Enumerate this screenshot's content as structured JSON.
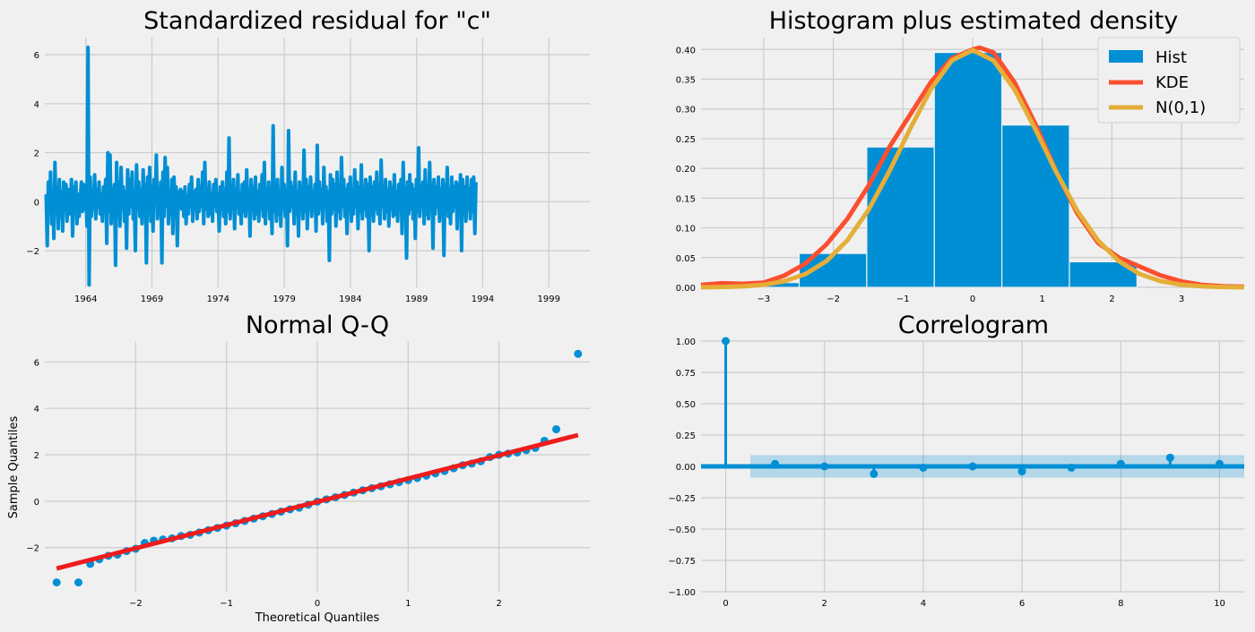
{
  "chart_data": [
    {
      "id": "resid",
      "type": "line",
      "title": "Standardized residual for \"c\"",
      "xlabel": "",
      "ylabel": "",
      "xlim": [
        1960.9,
        2002.1
      ],
      "ylim": [
        -3.5,
        6.7
      ],
      "xticks": [
        1964,
        1969,
        1974,
        1979,
        1984,
        1989,
        1994,
        1999
      ],
      "xtick_labels": [
        "1964",
        "1969",
        "1974",
        "1979",
        "1984",
        "1989",
        "1994",
        "1999"
      ],
      "yticks": [
        -2,
        0,
        2,
        4,
        6
      ],
      "ytick_labels": [
        "−2",
        "0",
        "2",
        "4",
        "6"
      ],
      "grid": true,
      "series": [
        {
          "color": "#008fd5",
          "x_start": 1961.0,
          "x_step": 0.0833,
          "values": [
            0.3,
            -1.8,
            0.8,
            -0.4,
            1.2,
            -0.9,
            0.2,
            -1.5,
            1.6,
            -0.3,
            0.6,
            -1.1,
            0.9,
            -0.6,
            0.4,
            -1.2,
            0.8,
            -0.2,
            0.7,
            -0.8,
            0.5,
            0.2,
            -0.5,
            0.9,
            -1.4,
            0.6,
            -0.2,
            0.8,
            -0.9,
            0.3,
            -0.6,
            0.2,
            0.8,
            -0.4,
            0.7,
            -0.3,
            0.5,
            -1.0,
            6.3,
            -3.4,
            1.0,
            -0.6,
            0.4,
            -0.3,
            1.1,
            -0.7,
            0.5,
            -0.2,
            0.8,
            -0.5,
            0.3,
            -0.8,
            0.6,
            -0.1,
            0.9,
            -1.7,
            2.0,
            -0.4,
            1.9,
            -0.9,
            0.5,
            -0.2,
            0.7,
            -2.6,
            1.6,
            -0.5,
            0.8,
            -1.0,
            1.4,
            -0.3,
            0.6,
            -0.8,
            0.4,
            -1.9,
            1.3,
            -0.5,
            0.9,
            -0.2,
            1.2,
            -0.7,
            0.3,
            -2.0,
            1.5,
            -0.3,
            0.8,
            -0.6,
            0.5,
            -0.9,
            1.3,
            -0.4,
            0.7,
            -2.5,
            1.0,
            -0.3,
            1.4,
            -0.8,
            0.6,
            -1.2,
            0.9,
            -0.1,
            1.9,
            -0.7,
            0.5,
            -0.3,
            0.8,
            -2.5,
            1.2,
            -0.6,
            1.8,
            -0.2,
            1.4,
            -0.9,
            0.3,
            -0.5,
            0.9,
            -1.3,
            1.0,
            -0.4,
            0.6,
            -1.8,
            0.4,
            -0.1,
            0.5,
            -0.3,
            0.4,
            -0.6,
            0.6,
            -0.9,
            0.2,
            -0.5,
            0.7,
            -0.2,
            1.0,
            -0.8,
            0.4,
            -0.3,
            0.5,
            -0.7,
            0.9,
            -0.4,
            0.6,
            -0.2,
            1.2,
            -0.9,
            1.6,
            -0.3,
            0.4,
            -0.6,
            0.8,
            -0.5,
            0.3,
            -0.8,
            0.7,
            -0.2,
            0.9,
            -0.4,
            0.3,
            -1.2,
            0.6,
            -0.3,
            0.8,
            -0.6,
            0.5,
            -0.9,
            1.2,
            -0.4,
            2.6,
            -0.7,
            0.6,
            -0.3,
            0.9,
            -1.1,
            0.5,
            -0.2,
            1.1,
            -0.5,
            0.3,
            -0.9,
            0.7,
            -0.4,
            0.8,
            -0.6,
            1.3,
            -0.3,
            0.5,
            -1.4,
            0.9,
            -0.2,
            0.6,
            -0.7,
            1.0,
            -0.5,
            0.4,
            -0.8,
            0.7,
            -0.3,
            1.1,
            -0.6,
            1.6,
            -0.9,
            0.4,
            -0.2,
            0.8,
            -0.7,
            0.5,
            -1.3,
            3.1,
            -0.4,
            0.6,
            -0.8,
            0.9,
            -0.5,
            0.3,
            -1.0,
            1.4,
            -0.3,
            0.7,
            -0.6,
            0.5,
            -1.8,
            2.9,
            -0.4,
            0.8,
            -0.2,
            0.6,
            -0.9,
            1.2,
            -0.5,
            0.4,
            -1.4,
            0.8,
            -0.3,
            0.5,
            -0.7,
            2.1,
            -0.4,
            0.9,
            -1.1,
            0.6,
            -0.3,
            1.0,
            -0.6,
            0.4,
            -0.2,
            0.7,
            -1.2,
            2.3,
            -0.5,
            0.8,
            -0.3,
            0.5,
            -0.9,
            1.4,
            -0.2,
            0.6,
            -0.8,
            0.4,
            -2.4,
            1.1,
            -0.5,
            0.9,
            -0.3,
            0.7,
            -1.0,
            1.2,
            -0.4,
            0.6,
            -0.7,
            1.8,
            -0.2,
            0.9,
            -0.6,
            0.5,
            -1.3,
            0.7,
            -0.3,
            1.0,
            -0.8,
            0.4,
            -0.5,
            1.3,
            -0.2,
            0.8,
            -1.1,
            0.6,
            -0.4,
            1.5,
            -0.7,
            0.5,
            -0.3,
            0.9,
            -0.6,
            0.7,
            -2.0,
            1.0,
            -0.4,
            0.6,
            -0.8,
            0.8,
            -0.3,
            1.2,
            -0.5,
            0.4,
            -0.9,
            1.7,
            -0.2,
            0.6,
            -0.7,
            0.9,
            -0.4,
            0.5,
            -1.0,
            0.8,
            -0.3,
            0.6,
            -0.6,
            1.1,
            -0.5,
            0.4,
            -0.8,
            0.7,
            -0.2,
            0.9,
            -1.3,
            1.6,
            -0.4,
            0.6,
            -2.3,
            0.8,
            -0.5,
            1.1,
            -0.3,
            0.7,
            -0.7,
            0.5,
            -1.5,
            0.9,
            -0.4,
            2.2,
            -0.6,
            0.6,
            -0.2,
            0.8,
            -0.9,
            1.3,
            -0.5,
            0.4,
            -0.7,
            1.6,
            -0.3,
            0.7,
            -1.9,
            0.9,
            -0.5,
            0.6,
            -0.2,
            1.0,
            -0.8,
            0.5,
            -0.4,
            0.9,
            -2.2,
            0.7,
            -0.3,
            1.4,
            -0.6,
            0.5,
            -0.9,
            1.0,
            -0.4,
            0.6,
            -0.2,
            0.8,
            -1.1,
            0.7,
            -0.5,
            1.1,
            -2.0,
            0.9,
            -0.4,
            0.6,
            -0.8,
            1.0,
            -0.3,
            0.5,
            -0.7,
            0.9,
            -0.4,
            1.0,
            -1.3,
            0.8
          ]
        }
      ]
    },
    {
      "id": "hist",
      "type": "bar",
      "title": "Histogram plus estimated density",
      "xlabel": "",
      "ylabel": "",
      "xlim": [
        -3.9,
        3.9
      ],
      "ylim": [
        0,
        0.42
      ],
      "xticks": [
        -3,
        -2,
        -1,
        0,
        1,
        2,
        3
      ],
      "xtick_labels": [
        "−3",
        "−2",
        "−1",
        "0",
        "1",
        "2",
        "3"
      ],
      "yticks": [
        0,
        0.05,
        0.1,
        0.15,
        0.2,
        0.25,
        0.3,
        0.35,
        0.4
      ],
      "ytick_labels": [
        "0.00",
        "0.05",
        "0.10",
        "0.15",
        "0.20",
        "0.25",
        "0.30",
        "0.35",
        "0.40"
      ],
      "grid": true,
      "legend_position": "top-right",
      "bins": [
        {
          "left": -3.46,
          "right": -2.49,
          "value": 0.008
        },
        {
          "left": -2.49,
          "right": -1.52,
          "value": 0.057
        },
        {
          "left": -1.52,
          "right": -0.55,
          "value": 0.236
        },
        {
          "left": -0.55,
          "right": 0.42,
          "value": 0.395
        },
        {
          "left": 0.42,
          "right": 1.39,
          "value": 0.273
        },
        {
          "left": 1.39,
          "right": 2.36,
          "value": 0.043
        }
      ],
      "series": [
        {
          "name": "Hist",
          "kind": "bar",
          "color": "#008fd5"
        },
        {
          "name": "KDE",
          "kind": "line",
          "color": "#fc4f30",
          "x": [
            -3.9,
            -3.6,
            -3.3,
            -3.0,
            -2.7,
            -2.4,
            -2.1,
            -1.8,
            -1.5,
            -1.2,
            -0.9,
            -0.6,
            -0.3,
            0.0,
            0.1,
            0.3,
            0.6,
            0.9,
            1.2,
            1.5,
            1.8,
            2.1,
            2.4,
            2.7,
            3.0,
            3.3,
            3.6,
            3.9
          ],
          "values": [
            0.004,
            0.007,
            0.006,
            0.008,
            0.02,
            0.04,
            0.072,
            0.115,
            0.17,
            0.235,
            0.29,
            0.345,
            0.385,
            0.4,
            0.403,
            0.395,
            0.345,
            0.275,
            0.195,
            0.125,
            0.075,
            0.05,
            0.035,
            0.02,
            0.01,
            0.004,
            0.002,
            0.001
          ]
        },
        {
          "name": "N(0,1)",
          "kind": "line",
          "color": "#e5ae38",
          "x": [
            -3.9,
            -3.6,
            -3.3,
            -3.0,
            -2.7,
            -2.4,
            -2.1,
            -1.8,
            -1.5,
            -1.2,
            -0.9,
            -0.6,
            -0.3,
            0.0,
            0.3,
            0.6,
            0.9,
            1.2,
            1.5,
            1.8,
            2.1,
            2.4,
            2.7,
            3.0,
            3.3,
            3.6,
            3.9
          ],
          "values": [
            0.0002,
            0.0006,
            0.0017,
            0.0044,
            0.0104,
            0.0224,
            0.044,
            0.079,
            0.1295,
            0.1942,
            0.2661,
            0.3332,
            0.3814,
            0.3989,
            0.3814,
            0.3332,
            0.2661,
            0.1942,
            0.1295,
            0.079,
            0.044,
            0.0224,
            0.0104,
            0.0044,
            0.0017,
            0.0006,
            0.0002
          ]
        }
      ]
    },
    {
      "id": "qq",
      "type": "scatter",
      "title": "Normal Q-Q",
      "xlabel": "Theoretical Quantiles",
      "ylabel": "Sample Quantiles",
      "xlim": [
        -3.0,
        3.0
      ],
      "ylim": [
        -3.9,
        6.9
      ],
      "xticks": [
        -2,
        -1,
        0,
        1,
        2
      ],
      "xtick_labels": [
        "−2",
        "−1",
        "0",
        "1",
        "2"
      ],
      "yticks": [
        -2,
        0,
        2,
        4,
        6
      ],
      "ytick_labels": [
        "−2",
        "0",
        "2",
        "4",
        "6"
      ],
      "grid": true,
      "reference_line": {
        "color": "#ee1c1c",
        "x": [
          -2.87,
          2.87
        ],
        "y": [
          -2.9,
          2.85
        ]
      },
      "series": [
        {
          "color": "#008fd5",
          "x": [
            -2.87,
            -2.63,
            -2.5,
            -2.4,
            -2.3,
            -2.2,
            -2.1,
            -2.0,
            -1.9,
            -1.8,
            -1.7,
            -1.6,
            -1.5,
            -1.4,
            -1.3,
            -1.2,
            -1.1,
            -1.0,
            -0.9,
            -0.8,
            -0.7,
            -0.6,
            -0.5,
            -0.4,
            -0.3,
            -0.2,
            -0.1,
            0.0,
            0.1,
            0.2,
            0.3,
            0.4,
            0.5,
            0.6,
            0.7,
            0.8,
            0.9,
            1.0,
            1.1,
            1.2,
            1.3,
            1.4,
            1.5,
            1.6,
            1.7,
            1.8,
            1.9,
            2.0,
            2.1,
            2.2,
            2.3,
            2.4,
            2.5,
            2.63,
            2.87
          ],
          "values": [
            -3.5,
            -3.5,
            -2.7,
            -2.5,
            -2.35,
            -2.3,
            -2.15,
            -2.05,
            -1.8,
            -1.7,
            -1.65,
            -1.6,
            -1.5,
            -1.45,
            -1.35,
            -1.25,
            -1.15,
            -1.05,
            -0.95,
            -0.85,
            -0.75,
            -0.65,
            -0.55,
            -0.45,
            -0.35,
            -0.28,
            -0.15,
            -0.02,
            0.08,
            0.17,
            0.27,
            0.37,
            0.47,
            0.56,
            0.64,
            0.73,
            0.82,
            0.91,
            1.0,
            1.1,
            1.2,
            1.3,
            1.42,
            1.55,
            1.62,
            1.72,
            1.9,
            2.0,
            2.05,
            2.1,
            2.2,
            2.3,
            2.6,
            3.1,
            6.35
          ]
        }
      ]
    },
    {
      "id": "acf",
      "type": "bar",
      "title": "Correlogram",
      "xlabel": "",
      "ylabel": "",
      "xlim": [
        -0.5,
        10.5
      ],
      "ylim": [
        -1.0,
        1.0
      ],
      "xticks": [
        0,
        2,
        4,
        6,
        8,
        10
      ],
      "xtick_labels": [
        "0",
        "2",
        "4",
        "6",
        "8",
        "10"
      ],
      "yticks": [
        -1.0,
        -0.75,
        -0.5,
        -0.25,
        0,
        0.25,
        0.5,
        0.75,
        1.0
      ],
      "ytick_labels": [
        "−1.00",
        "−0.75",
        "−0.50",
        "−0.25",
        "0.00",
        "0.25",
        "0.50",
        "0.75",
        "1.00"
      ],
      "grid": true,
      "confidence_band": {
        "x": [
          0.5,
          10.5
        ],
        "upper": 0.09,
        "lower": -0.09,
        "color": "#008fd5"
      },
      "series": [
        {
          "color": "#008fd5",
          "lags": [
            0,
            1,
            2,
            3,
            4,
            5,
            6,
            7,
            8,
            9,
            10
          ],
          "values": [
            1.0,
            0.02,
            0.0,
            -0.06,
            -0.01,
            0.0,
            -0.04,
            -0.01,
            0.02,
            0.07,
            0.02
          ]
        }
      ]
    }
  ]
}
